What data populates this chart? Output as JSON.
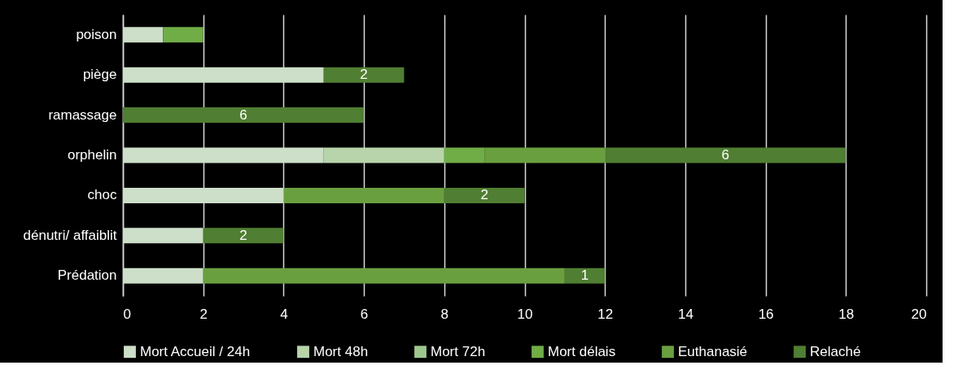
{
  "chart_data": {
    "type": "bar",
    "orientation": "horizontal",
    "stacked": true,
    "categories": [
      "poison",
      "piège",
      "ramassage",
      "orphelin",
      "choc",
      "dénutri/ affaiblit",
      "Prédation"
    ],
    "series": [
      {
        "name": "Mort Accueil / 24h",
        "color": "#cddfc8",
        "values": [
          1,
          5,
          null,
          5,
          4,
          2,
          2
        ]
      },
      {
        "name": "Mort 48h",
        "color": "#b8d4ab",
        "values": [
          null,
          null,
          null,
          3,
          null,
          null,
          null
        ]
      },
      {
        "name": "Mort 72h",
        "color": "#9ec78e",
        "values": [
          null,
          null,
          null,
          null,
          null,
          null,
          null
        ]
      },
      {
        "name": "Mort délais",
        "color": "#70ad47",
        "values": [
          1,
          null,
          null,
          1,
          null,
          null,
          null
        ]
      },
      {
        "name": "Euthanasié",
        "color": "#6a9f40",
        "values": [
          null,
          null,
          null,
          3,
          4,
          null,
          9
        ]
      },
      {
        "name": "Relaché",
        "color": "#507e32",
        "values": [
          null,
          2,
          6,
          6,
          2,
          2,
          1
        ],
        "value_labels": [
          null,
          "2",
          "6",
          "6",
          "2",
          "2",
          "1"
        ]
      }
    ],
    "xlim": [
      0,
      20
    ],
    "xticks": [
      0,
      2,
      4,
      6,
      8,
      10,
      12,
      14,
      16,
      18,
      20
    ],
    "grid": "x",
    "legend": "bottom"
  }
}
